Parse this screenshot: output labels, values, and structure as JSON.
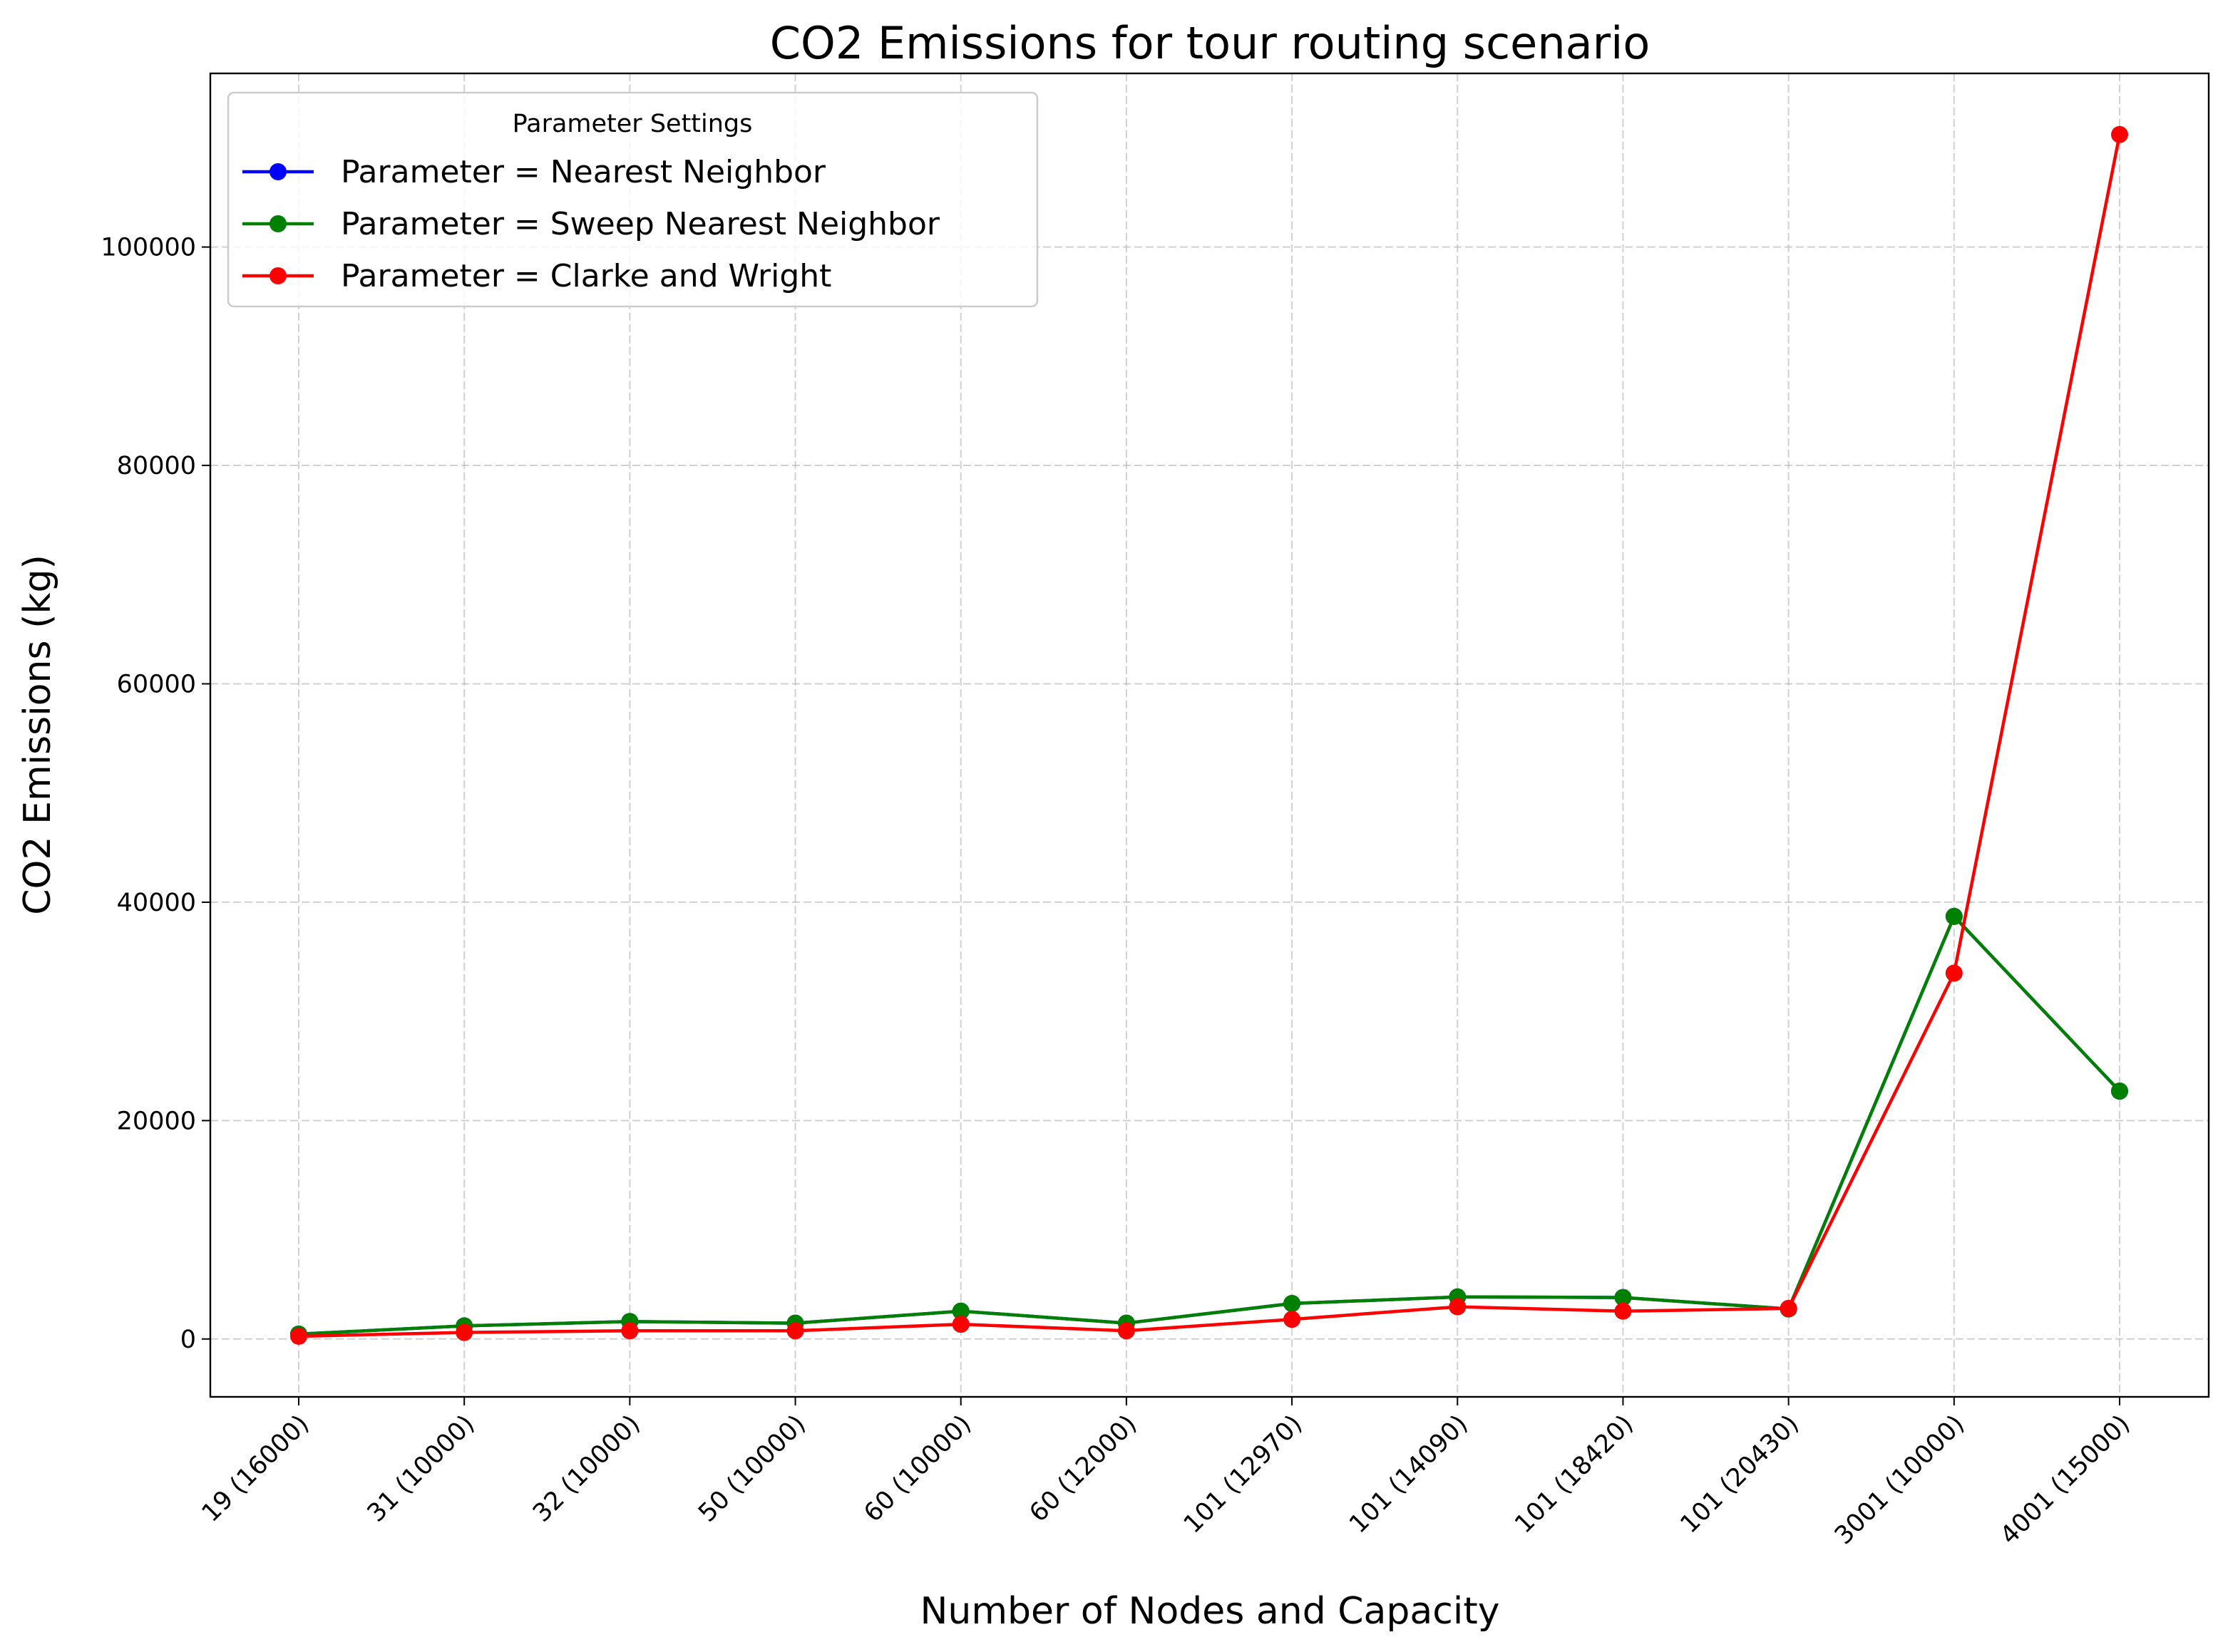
{
  "chart_data": {
    "type": "line",
    "title": "CO2 Emissions for tour routing scenario",
    "xlabel": "Number of Nodes and Capacity",
    "ylabel": "CO2 Emissions (kg)",
    "categories": [
      "19 (16000)",
      "31 (10000)",
      "32 (10000)",
      "50 (10000)",
      "60 (10000)",
      "60 (12000)",
      "101 (12970)",
      "101 (14090)",
      "101 (18420)",
      "101 (20430)",
      "3001 (10000)",
      "4001 (15000)"
    ],
    "ylim": [
      -5300,
      115900
    ],
    "yticks": [
      0,
      20000,
      40000,
      60000,
      80000,
      100000
    ],
    "ytick_labels": [
      "0",
      "20000",
      "40000",
      "60000",
      "80000",
      "100000"
    ],
    "grid": true,
    "legend": {
      "title": "Parameter Settings",
      "placement": "top-left"
    },
    "series": [
      {
        "name": "Parameter = Nearest Neighbor",
        "color": "#0000ff",
        "values": [
          450,
          1200,
          1600,
          1450,
          2550,
          1450,
          3250,
          3850,
          3800,
          2750,
          38700,
          22700
        ]
      },
      {
        "name": "Parameter = Sweep Nearest Neighbor",
        "color": "#008000",
        "values": [
          450,
          1200,
          1600,
          1450,
          2550,
          1450,
          3250,
          3850,
          3800,
          2750,
          38700,
          22700
        ]
      },
      {
        "name": "Parameter = Clarke and Wright",
        "color": "#ff0000",
        "values": [
          250,
          600,
          750,
          750,
          1350,
          750,
          1800,
          2950,
          2550,
          2800,
          33500,
          110300
        ]
      }
    ]
  }
}
